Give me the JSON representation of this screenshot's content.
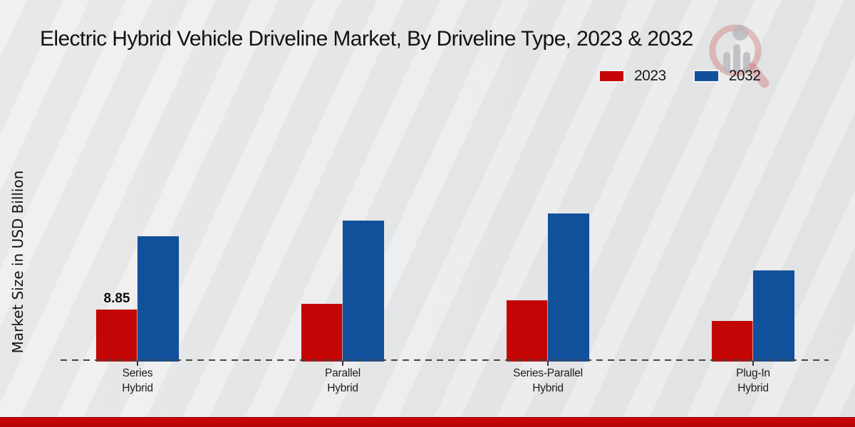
{
  "title": "Electric Hybrid Vehicle Driveline Market, By Driveline Type, 2023 & 2032",
  "y_axis_label": "Market Size in USD Billion",
  "legend": {
    "items": [
      {
        "label": "2023",
        "color": "#c40505"
      },
      {
        "label": "2032",
        "color": "#11519c"
      }
    ],
    "position": "top-right"
  },
  "colors": {
    "series_2023": "#c40505",
    "series_2032": "#11519c",
    "background": "#e9eaeb",
    "footer_bar": "#c00606",
    "baseline": "#454545"
  },
  "watermark": {
    "name": "market-research-magnifier-logo"
  },
  "chart_data": {
    "type": "bar",
    "title": "Electric Hybrid Vehicle Driveline Market, By Driveline Type, 2023 & 2032",
    "xlabel": "",
    "ylabel": "Market Size in USD Billion",
    "categories": [
      "Series Hybrid",
      "Parallel Hybrid",
      "Series-Parallel Hybrid",
      "Plug-In Hybrid"
    ],
    "category_label_lines": [
      [
        "Series",
        "Hybrid"
      ],
      [
        "Parallel",
        "Hybrid"
      ],
      [
        "Series-Parallel",
        "Hybrid"
      ],
      [
        "Plug-In",
        "Hybrid"
      ]
    ],
    "series": [
      {
        "name": "2023",
        "color": "#c40505",
        "values": [
          8.85,
          9.8,
          10.4,
          6.9
        ],
        "data_labels": [
          "8.85",
          "",
          "",
          ""
        ]
      },
      {
        "name": "2032",
        "color": "#11519c",
        "values": [
          21.2,
          23.8,
          25.0,
          15.4
        ],
        "data_labels": [
          "",
          "",
          "",
          ""
        ]
      }
    ],
    "ylim": [
      0,
      26
    ],
    "grid": false,
    "axis_style": "dashed-baseline-only",
    "legend_position": "top-right"
  }
}
